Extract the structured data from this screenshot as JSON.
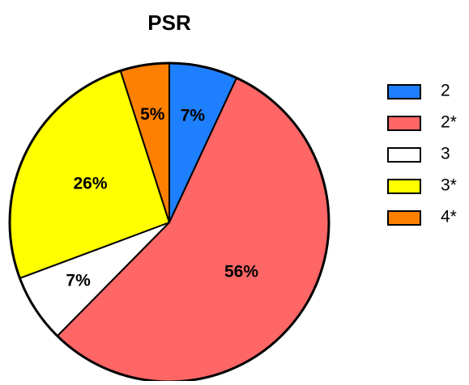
{
  "chart_data": {
    "type": "pie",
    "title": "PSR",
    "categories": [
      "2",
      "2*",
      "3",
      "3*",
      "4*"
    ],
    "values": [
      7,
      56,
      7,
      26,
      5
    ],
    "value_labels": [
      "7%",
      "56%",
      "7%",
      "26%",
      "5%"
    ],
    "colors": [
      "#1e7fff",
      "#ff6666",
      "#ffffff",
      "#ffff00",
      "#ff8000"
    ],
    "legend": "right"
  }
}
